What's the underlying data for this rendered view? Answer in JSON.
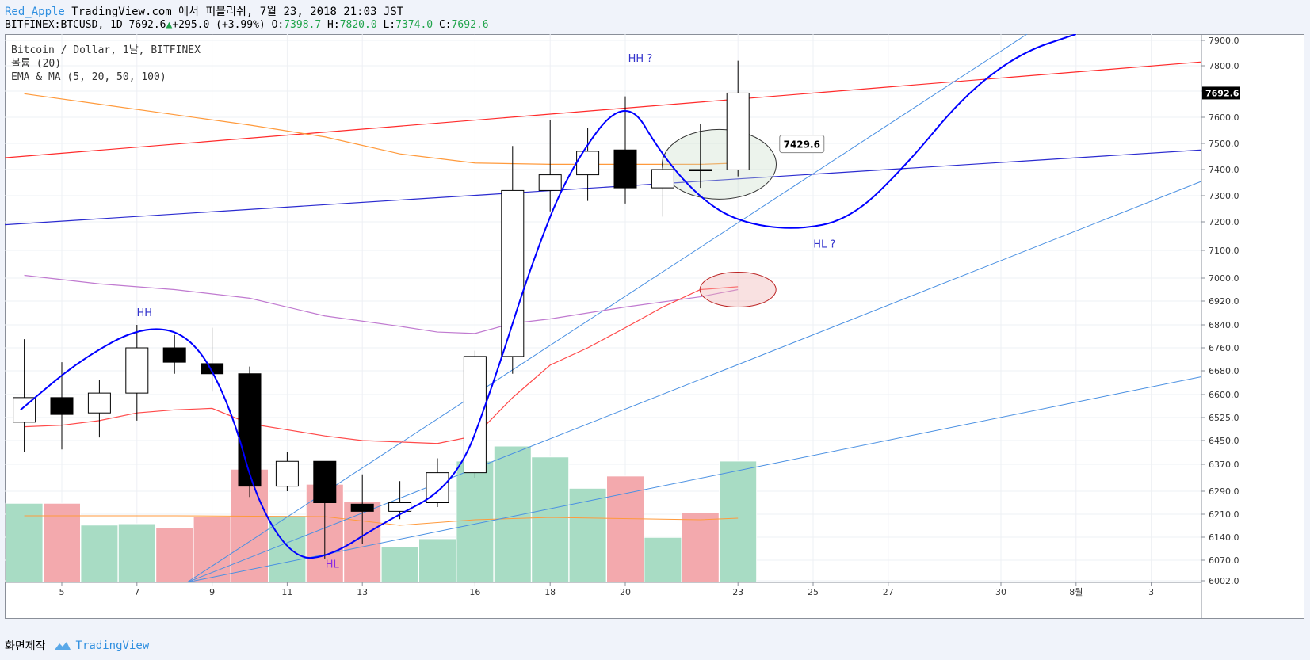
{
  "header": {
    "user": "Red_Apple",
    "published": "TradingView.com 에서 퍼블리쉬, 7월 23, 2018 21:03 JST",
    "symbol": "BITFINEX:BTCUSD, 1D",
    "last": "7692.6",
    "change": "+295.0 (+3.99%)",
    "o_label": "O:",
    "o_value": "7398.7",
    "h_label": "H:",
    "h_value": "7820.0",
    "l_label": "L:",
    "l_value": "7374.0",
    "c_label": "C:",
    "c_value": "7692.6"
  },
  "legend": {
    "line1": "Bitcoin / Dollar, 1날, BITFINEX",
    "line2": "볼륨 (20)",
    "line3": "EMA & MA (5, 20, 50, 100)"
  },
  "footer": {
    "made_with": "화면제작",
    "brand": "TradingView"
  },
  "colors": {
    "up_fill": "#ffffff",
    "down_fill": "#000000",
    "vol_up": "#a8dcc4",
    "vol_down": "#f3a9ad",
    "wave": "#0000ff",
    "ema_red": "#ff4a4a",
    "ma_orange": "#ff9a3c",
    "ma_purple": "#c07ad0",
    "trend_red": "#ff2b2b",
    "trend_blue": "#2b2bd0",
    "trend_lightblue": "#4a90e2"
  },
  "chart_data": {
    "type": "candlestick",
    "y_axis": {
      "ticks": [
        "7900.0",
        "7800.0",
        "7700.0",
        "7600.0",
        "7500.0",
        "7400.0",
        "7300.0",
        "7200.0",
        "7100.0",
        "7000.0",
        "6920.0",
        "6840.0",
        "6760.0",
        "6680.0",
        "6600.0",
        "6525.0",
        "6450.0",
        "6370.0",
        "6290.0",
        "6210.0",
        "6140.0",
        "6070.0",
        "6002.0"
      ],
      "last_price_label": "7692.6"
    },
    "x_axis": {
      "ticks": [
        {
          "label": "5",
          "day": 5
        },
        {
          "label": "7",
          "day": 7
        },
        {
          "label": "9",
          "day": 9
        },
        {
          "label": "11",
          "day": 11
        },
        {
          "label": "13",
          "day": 13
        },
        {
          "label": "16",
          "day": 16
        },
        {
          "label": "18",
          "day": 18
        },
        {
          "label": "20",
          "day": 20
        },
        {
          "label": "23",
          "day": 23
        },
        {
          "label": "25",
          "day": 25
        },
        {
          "label": "27",
          "day": 27
        },
        {
          "label": "30",
          "day": 30
        },
        {
          "label": "8월",
          "day": 32
        },
        {
          "label": "3",
          "day": 34
        }
      ]
    },
    "candles": [
      {
        "date": "2018-07-04",
        "day": 4,
        "open": 6510,
        "high": 6790,
        "low": 6410,
        "close": 6590
      },
      {
        "date": "2018-07-05",
        "day": 5,
        "open": 6590,
        "high": 6710,
        "low": 6420,
        "close": 6535
      },
      {
        "date": "2018-07-06",
        "day": 6,
        "open": 6540,
        "high": 6650,
        "low": 6460,
        "close": 6605
      },
      {
        "date": "2018-07-07",
        "day": 7,
        "open": 6605,
        "high": 6840,
        "low": 6515,
        "close": 6760
      },
      {
        "date": "2018-07-08",
        "day": 8,
        "open": 6760,
        "high": 6805,
        "low": 6670,
        "close": 6710
      },
      {
        "date": "2018-07-09",
        "day": 9,
        "open": 6705,
        "high": 6830,
        "low": 6610,
        "close": 6670
      },
      {
        "date": "2018-07-10",
        "day": 10,
        "open": 6670,
        "high": 6695,
        "low": 6270,
        "close": 6305
      },
      {
        "date": "2018-07-11",
        "day": 11,
        "open": 6305,
        "high": 6410,
        "low": 6290,
        "close": 6380
      },
      {
        "date": "2018-07-12",
        "day": 12,
        "open": 6380,
        "high": 6380,
        "low": 6075,
        "close": 6250
      },
      {
        "date": "2018-07-13",
        "day": 13,
        "open": 6245,
        "high": 6340,
        "low": 6120,
        "close": 6220
      },
      {
        "date": "2018-07-14",
        "day": 14,
        "open": 6220,
        "high": 6320,
        "low": 6195,
        "close": 6250
      },
      {
        "date": "2018-07-15",
        "day": 15,
        "open": 6250,
        "high": 6390,
        "low": 6235,
        "close": 6345
      },
      {
        "date": "2018-07-16",
        "day": 16,
        "open": 6345,
        "high": 6750,
        "low": 6330,
        "close": 6730
      },
      {
        "date": "2018-07-17",
        "day": 17,
        "open": 6730,
        "high": 7490,
        "low": 6670,
        "close": 7320
      },
      {
        "date": "2018-07-18",
        "day": 18,
        "open": 7320,
        "high": 7590,
        "low": 7240,
        "close": 7380
      },
      {
        "date": "2018-07-19",
        "day": 19,
        "open": 7380,
        "high": 7560,
        "low": 7280,
        "close": 7470
      },
      {
        "date": "2018-07-20",
        "day": 20,
        "open": 7475,
        "high": 7680,
        "low": 7270,
        "close": 7330
      },
      {
        "date": "2018-07-21",
        "day": 21,
        "open": 7330,
        "high": 7450,
        "low": 7220,
        "close": 7400
      },
      {
        "date": "2018-07-22",
        "day": 22,
        "open": 7400,
        "high": 7575,
        "low": 7330,
        "close": 7398
      },
      {
        "date": "2018-07-23",
        "day": 23,
        "open": 7398.7,
        "high": 7820,
        "low": 7374,
        "close": 7692.6
      }
    ],
    "volume_levels": [
      0.58,
      0.58,
      0.42,
      0.43,
      0.4,
      0.48,
      0.83,
      0.49,
      0.72,
      0.59,
      0.26,
      0.32,
      0.89,
      1.0,
      0.92,
      0.69,
      0.78,
      0.33,
      0.51,
      0.89
    ],
    "indicators": {
      "ema5": [
        [
          4,
          6495
        ],
        [
          5,
          6500
        ],
        [
          6,
          6515
        ],
        [
          7,
          6540
        ],
        [
          8,
          6550
        ],
        [
          9,
          6555
        ],
        [
          10,
          6505
        ],
        [
          11,
          6485
        ],
        [
          12,
          6465
        ],
        [
          13,
          6450
        ],
        [
          14,
          6445
        ],
        [
          15,
          6440
        ],
        [
          16,
          6465
        ],
        [
          17,
          6590
        ],
        [
          18,
          6700
        ],
        [
          19,
          6760
        ],
        [
          20,
          6830
        ],
        [
          21,
          6900
        ],
        [
          22,
          6960
        ],
        [
          23,
          6970
        ]
      ],
      "ma_orange": [
        [
          4,
          7690
        ],
        [
          6,
          7650
        ],
        [
          8,
          7610
        ],
        [
          10,
          7570
        ],
        [
          12,
          7525
        ],
        [
          14,
          7460
        ],
        [
          16,
          7425
        ],
        [
          18,
          7420
        ],
        [
          20,
          7420
        ],
        [
          22,
          7420
        ],
        [
          23,
          7425
        ]
      ],
      "ma_purple": [
        [
          4,
          7010
        ],
        [
          6,
          6980
        ],
        [
          8,
          6960
        ],
        [
          10,
          6930
        ],
        [
          12,
          6870
        ],
        [
          14,
          6835
        ],
        [
          15,
          6815
        ],
        [
          16,
          6810
        ],
        [
          17,
          6845
        ],
        [
          18,
          6860
        ],
        [
          20,
          6900
        ],
        [
          22,
          6935
        ],
        [
          23,
          6960
        ]
      ]
    },
    "annotations": [
      {
        "text": "HH",
        "day": 7.2,
        "price": 6870
      },
      {
        "text": "HL",
        "day": 12.2,
        "price": 6045
      },
      {
        "text": "HH ?",
        "day": 20.4,
        "price": 7815
      },
      {
        "text": "HL ?",
        "day": 25.3,
        "price": 7110
      },
      {
        "text": "7429.6",
        "day": 24.7,
        "price": 7495
      }
    ]
  }
}
